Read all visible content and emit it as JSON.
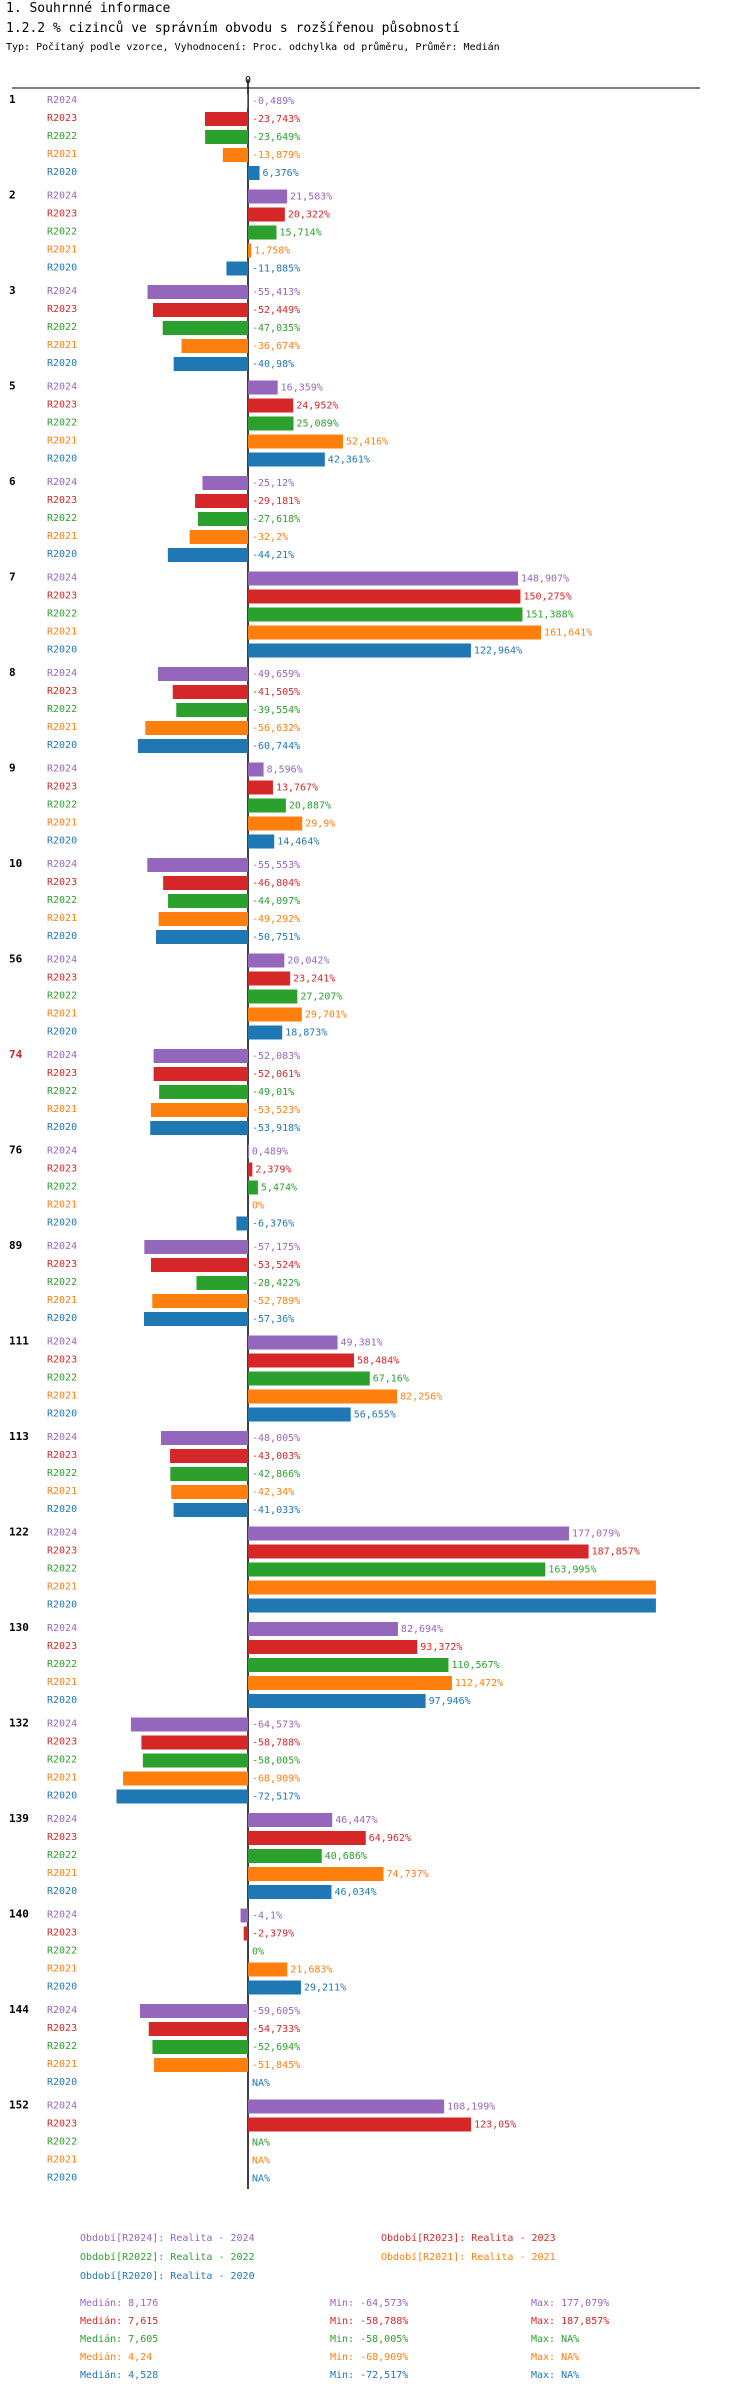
{
  "header": {
    "title": "1. Souhrnné informace",
    "subtitle": "1.2.2 % cizinců ve správním obvodu s rozšířenou působností",
    "meta": "Typ: Počítaný podle vzorce, Vyhodnocení: Proc. odchylka od průměru, Průměr: Medián"
  },
  "colors": {
    "R2024": "#9467bd",
    "R2023": "#d62728",
    "R2022": "#2ca02c",
    "R2021": "#ff7f0e",
    "R2020": "#1f77b4",
    "highlight": "#d62728"
  },
  "chart_data": {
    "type": "bar",
    "orientation": "horizontal",
    "title": "1.2.2 % cizinců ve správním obvodu s rozšířenou působností",
    "axis_zero_label": "0",
    "series": [
      {
        "name": "R2024",
        "label": "R2024",
        "color": "#9467bd"
      },
      {
        "name": "R2023",
        "label": "R2023",
        "color": "#d62728"
      },
      {
        "name": "R2022",
        "label": "R2022",
        "color": "#2ca02c"
      },
      {
        "name": "R2021",
        "label": "R2021",
        "color": "#ff7f0e"
      },
      {
        "name": "R2020",
        "label": "R2020",
        "color": "#1f77b4"
      }
    ],
    "groups": [
      {
        "id": "1",
        "highlight": false,
        "values": [
          -0.489,
          -23.743,
          -23.649,
          -13.879,
          6.376
        ],
        "labels": [
          "-0,489%",
          "-23,743%",
          "-23,649%",
          "-13,879%",
          "6,376%"
        ]
      },
      {
        "id": "2",
        "highlight": false,
        "values": [
          21.583,
          20.322,
          15.714,
          1.758,
          -11.885
        ],
        "labels": [
          "21,583%",
          "20,322%",
          "15,714%",
          "1,758%",
          "-11,885%"
        ]
      },
      {
        "id": "3",
        "highlight": false,
        "values": [
          -55.413,
          -52.449,
          -47.035,
          -36.674,
          -40.98
        ],
        "labels": [
          "-55,413%",
          "-52,449%",
          "-47,035%",
          "-36,674%",
          "-40,98%"
        ]
      },
      {
        "id": "5",
        "highlight": false,
        "values": [
          16.359,
          24.952,
          25.089,
          52.416,
          42.361
        ],
        "labels": [
          "16,359%",
          "24,952%",
          "25,089%",
          "52,416%",
          "42,361%"
        ]
      },
      {
        "id": "6",
        "highlight": false,
        "values": [
          -25.12,
          -29.181,
          -27.618,
          -32.2,
          -44.21
        ],
        "labels": [
          "-25,12%",
          "-29,181%",
          "-27,618%",
          "-32,2%",
          "-44,21%"
        ]
      },
      {
        "id": "7",
        "highlight": false,
        "values": [
          148.907,
          150.275,
          151.388,
          161.641,
          122.964
        ],
        "labels": [
          "148,907%",
          "150,275%",
          "151,388%",
          "161,641%",
          "122,964%"
        ]
      },
      {
        "id": "8",
        "highlight": false,
        "values": [
          -49.659,
          -41.505,
          -39.554,
          -56.632,
          -60.744
        ],
        "labels": [
          "-49,659%",
          "-41,505%",
          "-39,554%",
          "-56,632%",
          "-60,744%"
        ]
      },
      {
        "id": "9",
        "highlight": false,
        "values": [
          8.596,
          13.767,
          20.887,
          29.9,
          14.464
        ],
        "labels": [
          "8,596%",
          "13,767%",
          "20,887%",
          "29,9%",
          "14,464%"
        ]
      },
      {
        "id": "10",
        "highlight": false,
        "values": [
          -55.553,
          -46.804,
          -44.097,
          -49.292,
          -50.751
        ],
        "labels": [
          "-55,553%",
          "-46,804%",
          "-44,097%",
          "-49,292%",
          "-50,751%"
        ]
      },
      {
        "id": "56",
        "highlight": false,
        "values": [
          20.042,
          23.241,
          27.207,
          29.701,
          18.873
        ],
        "labels": [
          "20,042%",
          "23,241%",
          "27,207%",
          "29,701%",
          "18,873%"
        ]
      },
      {
        "id": "74",
        "highlight": true,
        "values": [
          -52.083,
          -52.061,
          -49.01,
          -53.523,
          -53.918
        ],
        "labels": [
          "-52,083%",
          "-52,061%",
          "-49,01%",
          "-53,523%",
          "-53,918%"
        ]
      },
      {
        "id": "76",
        "highlight": false,
        "values": [
          0.489,
          2.379,
          5.474,
          0,
          -6.376
        ],
        "labels": [
          "0,489%",
          "2,379%",
          "5,474%",
          "0%",
          "-6,376%"
        ]
      },
      {
        "id": "89",
        "highlight": false,
        "values": [
          -57.175,
          -53.524,
          -28.422,
          -52.789,
          -57.36
        ],
        "labels": [
          "-57,175%",
          "-53,524%",
          "-28,422%",
          "-52,789%",
          "-57,36%"
        ]
      },
      {
        "id": "111",
        "highlight": false,
        "values": [
          49.381,
          58.484,
          67.16,
          82.256,
          56.655
        ],
        "labels": [
          "49,381%",
          "58,484%",
          "67,16%",
          "82,256%",
          "56,655%"
        ]
      },
      {
        "id": "113",
        "highlight": false,
        "values": [
          -48.005,
          -43.003,
          -42.866,
          -42.34,
          -41.033
        ],
        "labels": [
          "-48,005%",
          "-43,003%",
          "-42,866%",
          "-42,34%",
          "-41,033%"
        ]
      },
      {
        "id": "122",
        "highlight": false,
        "values": [
          177.079,
          187.857,
          163.995,
          225,
          225
        ],
        "labels": [
          "177,079%",
          "187,857%",
          "163,995%",
          "",
          ""
        ]
      },
      {
        "id": "130",
        "highlight": false,
        "values": [
          82.694,
          93.372,
          110.567,
          112.472,
          97.946
        ],
        "labels": [
          "82,694%",
          "93,372%",
          "110,567%",
          "112,472%",
          "97,946%"
        ]
      },
      {
        "id": "132",
        "highlight": false,
        "values": [
          -64.573,
          -58.788,
          -58.005,
          -68.909,
          -72.517
        ],
        "labels": [
          "-64,573%",
          "-58,788%",
          "-58,005%",
          "-68,909%",
          "-72,517%"
        ]
      },
      {
        "id": "139",
        "highlight": false,
        "values": [
          46.447,
          64.962,
          40.686,
          74.737,
          46.034
        ],
        "labels": [
          "46,447%",
          "64,962%",
          "40,686%",
          "74,737%",
          "46,034%"
        ]
      },
      {
        "id": "140",
        "highlight": false,
        "values": [
          -4.1,
          -2.379,
          0,
          21.683,
          29.211
        ],
        "labels": [
          "-4,1%",
          "-2,379%",
          "0%",
          "21,683%",
          "29,211%"
        ]
      },
      {
        "id": "144",
        "highlight": false,
        "values": [
          -59.605,
          -54.733,
          -52.694,
          -51.845,
          null
        ],
        "labels": [
          "-59,605%",
          "-54,733%",
          "-52,694%",
          "-51,845%",
          "NA%"
        ]
      },
      {
        "id": "152",
        "highlight": false,
        "values": [
          108.199,
          123.05,
          null,
          null,
          null
        ],
        "labels": [
          "108,199%",
          "123,05%",
          "NA%",
          "NA%",
          "NA%"
        ]
      }
    ]
  },
  "legend": {
    "items": [
      {
        "text": "Období[R2024]: Realita - 2024",
        "color": "#9467bd"
      },
      {
        "text": "Období[R2023]: Realita - 2023",
        "color": "#d62728"
      },
      {
        "text": "Období[R2022]: Realita - 2022",
        "color": "#2ca02c"
      },
      {
        "text": "Období[R2021]: Realita - 2021",
        "color": "#ff7f0e"
      },
      {
        "text": "Období[R2020]: Realita - 2020",
        "color": "#1f77b4"
      }
    ]
  },
  "stats": [
    {
      "color": "#9467bd",
      "median": "Medián: 8,176",
      "min": "Min: -64,573%",
      "max": "Max: 177,079%"
    },
    {
      "color": "#d62728",
      "median": "Medián: 7,615",
      "min": "Min: -58,788%",
      "max": "Max: 187,857%"
    },
    {
      "color": "#2ca02c",
      "median": "Medián: 7,605",
      "min": "Min: -58,005%",
      "max": "Max: NA%"
    },
    {
      "color": "#ff7f0e",
      "median": "Medián: 4,24",
      "min": "Min: -68,909%",
      "max": "Max: NA%"
    },
    {
      "color": "#1f77b4",
      "median": "Medián: 4,528",
      "min": "Min: -72,517%",
      "max": "Max: NA%"
    }
  ]
}
